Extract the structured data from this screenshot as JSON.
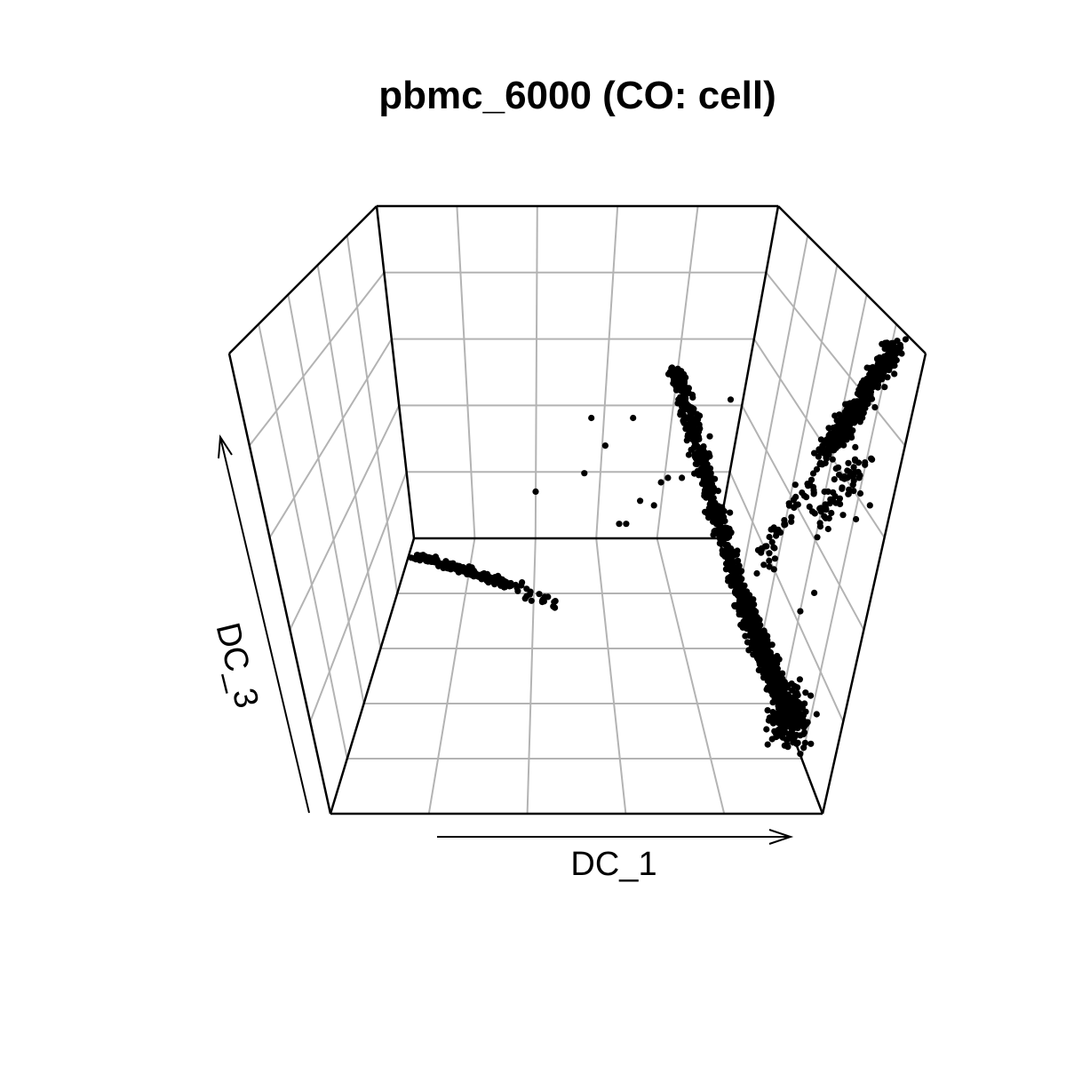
{
  "chart_data": {
    "type": "scatter",
    "title": "pbmc_6000 (CO: cell)",
    "xlabel": "DC_1",
    "zlabel": "DC_3",
    "projection": "3d-perspective",
    "grid": true,
    "point_color": "#000000",
    "clusters": [
      {
        "shape": "band",
        "start": [
          0.27,
          0.44
        ],
        "end": [
          0.4,
          0.5
        ],
        "spread": 0.004,
        "count": 220
      },
      {
        "shape": "band",
        "start": [
          0.4,
          0.5
        ],
        "end": [
          0.48,
          0.55
        ],
        "spread": 0.008,
        "count": 25
      },
      {
        "shape": "band",
        "start": [
          0.64,
          0.03
        ],
        "end": [
          0.74,
          0.55
        ],
        "spread": 0.006,
        "count": 500
      },
      {
        "shape": "band",
        "start": [
          0.74,
          0.55
        ],
        "end": [
          0.81,
          0.8
        ],
        "spread": 0.007,
        "count": 700
      },
      {
        "shape": "blob",
        "center": [
          0.805,
          0.79
        ],
        "spread": [
          0.014,
          0.03
        ],
        "count": 200
      },
      {
        "shape": "band",
        "start": [
          0.76,
          0.47
        ],
        "end": [
          0.86,
          0.21
        ],
        "spread": 0.01,
        "count": 60
      },
      {
        "shape": "band",
        "start": [
          0.86,
          0.21
        ],
        "end": [
          0.96,
          -0.02
        ],
        "spread": 0.008,
        "count": 400
      },
      {
        "shape": "band",
        "start": [
          0.85,
          0.38
        ],
        "end": [
          0.91,
          0.22
        ],
        "spread": 0.012,
        "count": 60
      }
    ],
    "outliers": [
      [
        0.52,
        0.14
      ],
      [
        0.54,
        0.2
      ],
      [
        0.58,
        0.14
      ],
      [
        0.51,
        0.26
      ],
      [
        0.62,
        0.28
      ],
      [
        0.44,
        0.3
      ],
      [
        0.59,
        0.32
      ],
      [
        0.61,
        0.33
      ],
      [
        0.66,
        0.22
      ],
      [
        0.67,
        0.24
      ],
      [
        0.68,
        0.26
      ],
      [
        0.63,
        0.27
      ],
      [
        0.65,
        0.27
      ],
      [
        0.56,
        0.37
      ],
      [
        0.57,
        0.37
      ],
      [
        0.86,
        0.3
      ],
      [
        0.87,
        0.31
      ],
      [
        0.88,
        0.27
      ],
      [
        0.9,
        0.36
      ],
      [
        0.92,
        0.33
      ],
      [
        0.71,
        0.4
      ],
      [
        0.69,
        0.18
      ],
      [
        0.72,
        0.1
      ],
      [
        0.82,
        0.56
      ],
      [
        0.84,
        0.52
      ]
    ]
  }
}
